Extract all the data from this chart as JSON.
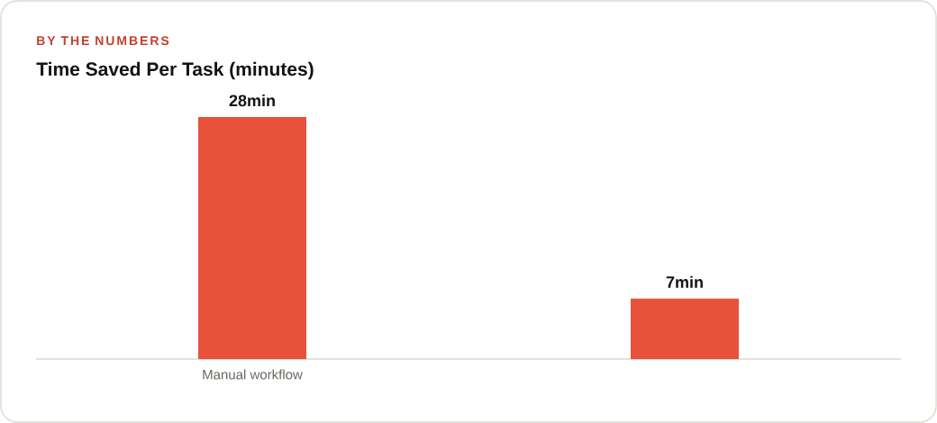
{
  "chart_data": {
    "type": "bar",
    "subtitle": "BY THE NUMBERS",
    "title": "Time Saved Per Task (minutes)",
    "categories": [
      "Manual workflow",
      null
    ],
    "values": [
      28,
      7
    ],
    "color": "#e8523a",
    "value_labels": [
      "28min",
      "7min"
    ]
  }
}
